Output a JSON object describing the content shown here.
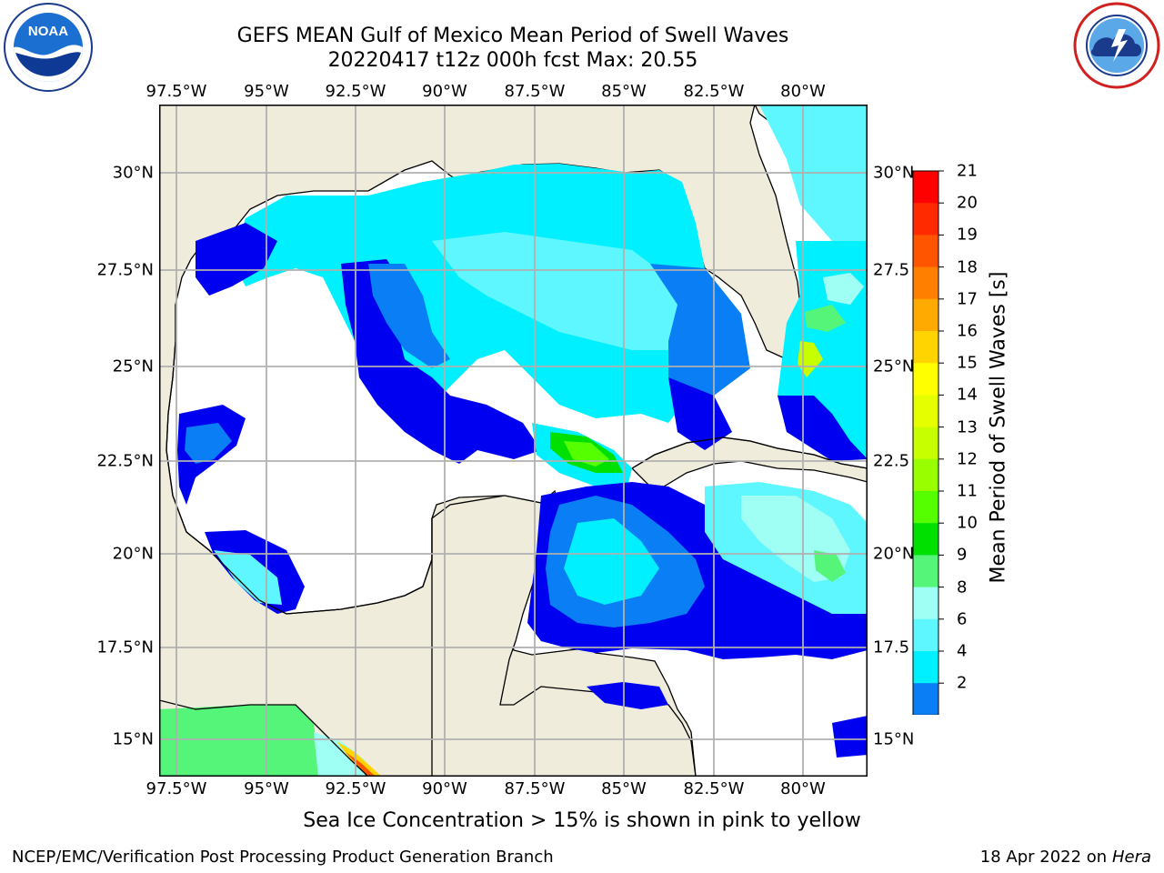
{
  "title": {
    "line1": "GEFS MEAN Gulf of Mexico Mean Period of Swell Waves",
    "line2": "20220417 t12z 000h fcst   Max: 20.55"
  },
  "map": {
    "lon_labels": [
      "97.5°W",
      "95°W",
      "92.5°W",
      "90°W",
      "87.5°W",
      "85°W",
      "82.5°W",
      "80°W"
    ],
    "lat_labels_left": [
      "30°N",
      "27.5°N",
      "25°N",
      "22.5°N",
      "20°N",
      "17.5°N",
      "15°N"
    ],
    "lat_labels_right": [
      "30°N",
      "27.5",
      "25°N",
      "22.5",
      "20°N",
      "17.5",
      "15°N"
    ],
    "extent": {
      "lon_min": -98.0,
      "lon_max": -78.2,
      "lat_min": 14.0,
      "lat_max": 31.8
    },
    "land_color": "#efecdc",
    "grid_color": "#b0b0b0"
  },
  "colorbar": {
    "title": "Mean Period of Swell Waves [s]",
    "labels": [
      "21",
      "20",
      "19",
      "18",
      "17",
      "16",
      "15",
      "14",
      "13",
      "12",
      "11",
      "10",
      "9",
      "8",
      "6",
      "4",
      "2"
    ],
    "colors": [
      "#ff0000",
      "#ff2a00",
      "#ff5500",
      "#ff8000",
      "#ffaa00",
      "#ffd400",
      "#ffff00",
      "#e6ff00",
      "#c8ff00",
      "#99ff00",
      "#55ff00",
      "#00e000",
      "#55f57a",
      "#a0fff5",
      "#5ff7ff",
      "#00f0ff",
      "#0a7ef5"
    ],
    "extend_color": "#0000f0"
  },
  "caption": "Sea Ice Concentration > 15% is shown in pink to yellow",
  "footer": {
    "left": "NCEP/EMC/Verification Post Processing Product Generation Branch",
    "date": "18 Apr 2022 on ",
    "machine": "Hera"
  },
  "logos": {
    "noaa_text": "NOAA",
    "noaa_ring": "NATIONAL OCEANIC AND ATMOSPHERIC ADMINISTRATION · U.S. DEPARTMENT OF COMMERCE",
    "nws_ring": "NATIONAL WEATHER SERVICE"
  }
}
